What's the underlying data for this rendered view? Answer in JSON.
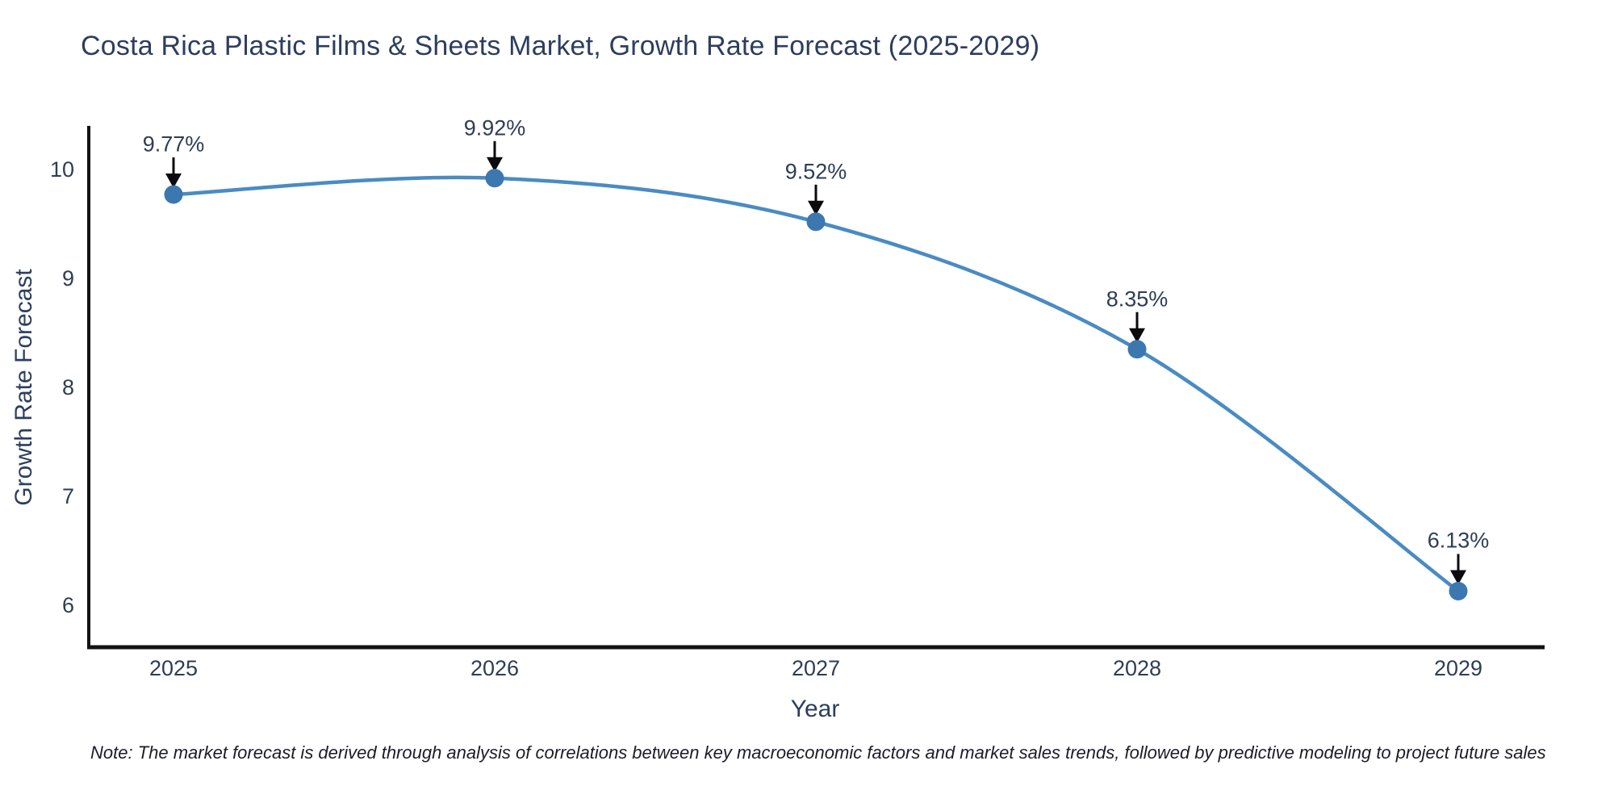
{
  "title": "Costa Rica Plastic Films & Sheets Market, Growth Rate Forecast (2025-2029)",
  "note": "Note: The market forecast is derived through analysis of correlations between key macroeconomic factors and market sales trends, followed by predictive modeling to project future sales",
  "chart_data": {
    "type": "line",
    "title": "Costa Rica Plastic Films & Sheets Market, Growth Rate Forecast (2025-2029)",
    "x": [
      2025,
      2026,
      2027,
      2028,
      2029
    ],
    "series": [
      {
        "name": "Growth Rate Forecast",
        "values": [
          9.77,
          9.92,
          9.52,
          8.35,
          6.13
        ]
      }
    ],
    "point_labels": [
      "9.77%",
      "9.92%",
      "9.52%",
      "8.35%",
      "6.13%"
    ],
    "xlabel": "Year",
    "ylabel": "Growth Rate Forecast",
    "yticks": [
      10,
      9,
      8,
      7,
      6
    ],
    "xticks": [
      "2025",
      "2026",
      "2027",
      "2028",
      "2029"
    ],
    "ylim": [
      5.6,
      10.37
    ],
    "grid": false,
    "legend_position": "none",
    "line_shape": "spline",
    "marker_style": "circle",
    "annotation_arrows": true
  },
  "colors": {
    "background": "#ffffff",
    "title_text": "#2c3e5d",
    "tick_text": "#2e3d55",
    "axis_line": "#121212",
    "line": "#4a8bc2",
    "marker": "#3c77b0",
    "arrow": "#0b0b0f",
    "note_text": "#1c1c28"
  }
}
